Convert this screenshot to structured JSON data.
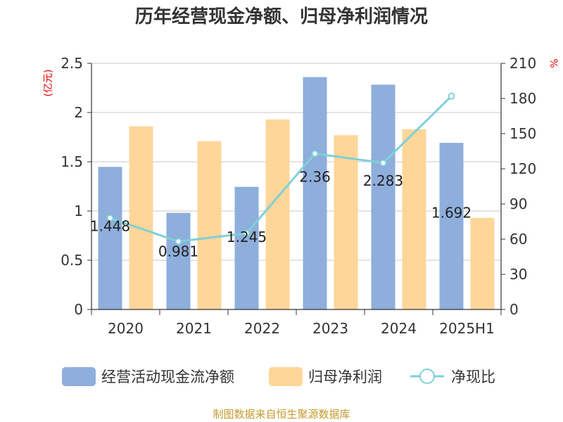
{
  "chart_data": {
    "type": "bar",
    "title": "历年经营现金净额、归母净利润情况",
    "categories": [
      "2020",
      "2021",
      "2022",
      "2023",
      "2024",
      "2025H1"
    ],
    "left_axis": {
      "unit": "(亿元)",
      "range": [
        0,
        2.5
      ],
      "ticks": [
        "0",
        "0.5",
        "1",
        "1.5",
        "2",
        "2.5"
      ]
    },
    "right_axis": {
      "unit": "%",
      "range": [
        0,
        210
      ],
      "ticks": [
        "0",
        "30",
        "60",
        "90",
        "120",
        "150",
        "180",
        "210"
      ]
    },
    "series": [
      {
        "name": "经营活动现金流净额",
        "type": "bar",
        "axis": "left",
        "color": "#8eaedc",
        "values": [
          1.448,
          0.981,
          1.245,
          2.36,
          2.283,
          1.692
        ],
        "labels": [
          "1.448",
          "0.981",
          "1.245",
          "2.36",
          "2.283",
          "1.692"
        ]
      },
      {
        "name": "归母净利润",
        "type": "bar",
        "axis": "left",
        "color": "#ffd699",
        "values": [
          1.86,
          1.71,
          1.93,
          1.77,
          1.83,
          0.93
        ]
      },
      {
        "name": "净现比",
        "type": "line",
        "axis": "right",
        "color": "#7fd0d8",
        "values": [
          78,
          58,
          65,
          133,
          125,
          182
        ]
      }
    ],
    "grid": true,
    "legend_position": "bottom"
  },
  "footer": "制图数据来自恒生聚源数据库"
}
